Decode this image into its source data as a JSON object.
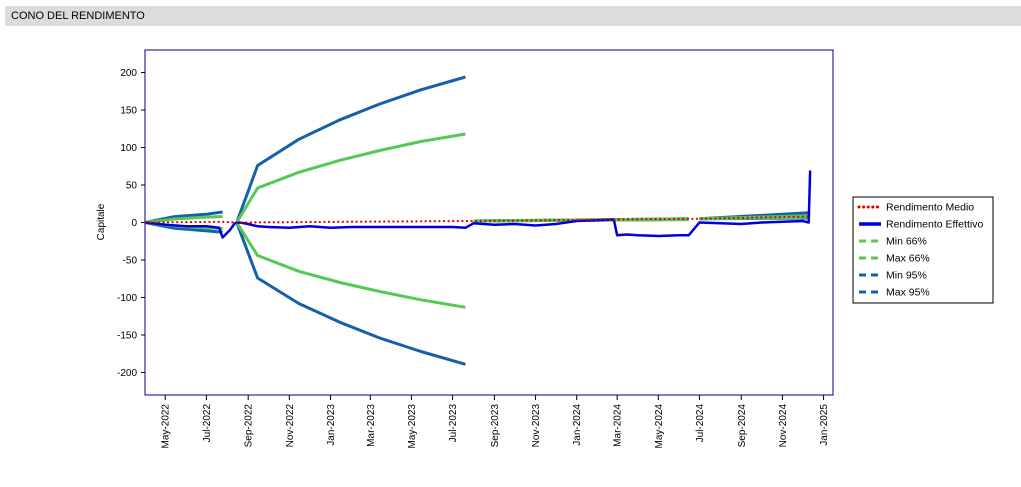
{
  "header": {
    "title": "CONO DEL RENDIMENTO"
  },
  "colors": {
    "axis_frame": "#000080",
    "rendimento_medio": "#e00000",
    "rendimento_effettivo": "#0000dd",
    "band66": "#55c855",
    "band95": "#1560a8"
  },
  "chart_data": {
    "type": "line",
    "title": "CONO DEL RENDIMENTO",
    "ylabel": "Capitale",
    "xlabel": "",
    "ylim": [
      -230,
      230
    ],
    "yticks": [
      200,
      150,
      100,
      50,
      0,
      -50,
      -100,
      -150,
      -200
    ],
    "xticks": [
      "May-2022",
      "Jul-2022",
      "Sep-2022",
      "Nov-2022",
      "Jan-2023",
      "Mar-2023",
      "May-2023",
      "Jul-2023",
      "Sep-2023",
      "Nov-2023",
      "Jan-2024",
      "Mar-2024",
      "May-2024",
      "Jul-2024",
      "Sep-2024",
      "Nov-2024",
      "Jan-2025"
    ],
    "x_range": [
      "2022-04-01",
      "2025-01-15"
    ],
    "grid": false,
    "legend_position": "right",
    "legend": [
      "Rendimento Medio",
      "Rendimento Effettivo",
      "Min 66%",
      "Max 66%",
      "Min 95%",
      "Max 95%"
    ],
    "series": [
      {
        "name": "Rendimento Medio",
        "style": "dotted",
        "points": [
          [
            "2022-04-01",
            0
          ],
          [
            "2022-07-25",
            1
          ],
          [
            "2022-08-15",
            0
          ],
          [
            "2023-07-20",
            2
          ],
          [
            "2023-08-01",
            2
          ],
          [
            "2024-06-15",
            5
          ],
          [
            "2024-07-01",
            5
          ],
          [
            "2024-12-10",
            8
          ]
        ]
      },
      {
        "name": "Rendimento Effettivo",
        "style": "solid",
        "points": [
          [
            "2022-04-01",
            0
          ],
          [
            "2022-05-01",
            -3
          ],
          [
            "2022-06-01",
            -5
          ],
          [
            "2022-07-01",
            -5
          ],
          [
            "2022-07-20",
            -7
          ],
          [
            "2022-07-25",
            -20
          ],
          [
            "2022-08-05",
            -10
          ],
          [
            "2022-08-12",
            -1
          ],
          [
            "2022-08-20",
            0
          ],
          [
            "2022-09-01",
            -2
          ],
          [
            "2022-09-15",
            -5
          ],
          [
            "2022-10-01",
            -6
          ],
          [
            "2022-11-01",
            -7
          ],
          [
            "2022-12-01",
            -5
          ],
          [
            "2023-01-01",
            -7
          ],
          [
            "2023-02-01",
            -6
          ],
          [
            "2023-03-01",
            -6
          ],
          [
            "2023-04-01",
            -6
          ],
          [
            "2023-05-01",
            -6
          ],
          [
            "2023-06-01",
            -6
          ],
          [
            "2023-07-01",
            -6
          ],
          [
            "2023-07-20",
            -7
          ],
          [
            "2023-08-01",
            -1
          ],
          [
            "2023-09-01",
            -3
          ],
          [
            "2023-10-01",
            -2
          ],
          [
            "2023-11-01",
            -4
          ],
          [
            "2023-12-01",
            -2
          ],
          [
            "2024-01-01",
            2
          ],
          [
            "2024-02-01",
            3
          ],
          [
            "2024-02-25",
            4
          ],
          [
            "2024-03-01",
            -17
          ],
          [
            "2024-03-15",
            -16
          ],
          [
            "2024-04-01",
            -17
          ],
          [
            "2024-05-01",
            -18
          ],
          [
            "2024-06-01",
            -17
          ],
          [
            "2024-06-15",
            -17
          ],
          [
            "2024-07-01",
            0
          ],
          [
            "2024-08-01",
            -1
          ],
          [
            "2024-09-01",
            -2
          ],
          [
            "2024-10-01",
            0
          ],
          [
            "2024-11-01",
            1
          ],
          [
            "2024-12-01",
            2
          ],
          [
            "2024-12-10",
            0
          ],
          [
            "2024-12-12",
            68
          ]
        ]
      },
      {
        "name": "Min 66%",
        "style": "dashed",
        "segments": [
          [
            [
              "2022-04-01",
              0
            ],
            [
              "2022-05-15",
              -4.7
            ],
            [
              "2022-06-30",
              -7.2
            ],
            [
              "2022-07-25",
              -8
            ]
          ],
          [
            [
              "2022-08-15",
              0
            ],
            [
              "2022-09-15",
              -44
            ],
            [
              "2022-11-15",
              -65
            ],
            [
              "2023-01-15",
              -80
            ],
            [
              "2023-03-15",
              -92
            ],
            [
              "2023-05-15",
              -103
            ],
            [
              "2023-07-20",
              -113
            ]
          ],
          [
            [
              "2023-08-01",
              2
            ],
            [
              "2024-06-15",
              4
            ]
          ],
          [
            [
              "2024-07-01",
              5
            ],
            [
              "2024-12-10",
              7
            ]
          ]
        ]
      },
      {
        "name": "Max 66%",
        "style": "dashed",
        "segments": [
          [
            [
              "2022-04-01",
              0
            ],
            [
              "2022-05-15",
              4.7
            ],
            [
              "2022-06-30",
              7.2
            ],
            [
              "2022-07-25",
              8
            ]
          ],
          [
            [
              "2022-08-15",
              0
            ],
            [
              "2022-09-15",
              46
            ],
            [
              "2022-11-15",
              67
            ],
            [
              "2023-01-15",
              83
            ],
            [
              "2023-03-15",
              96
            ],
            [
              "2023-05-15",
              108
            ],
            [
              "2023-07-20",
              118
            ]
          ],
          [
            [
              "2023-08-01",
              2
            ],
            [
              "2024-06-15",
              5
            ]
          ],
          [
            [
              "2024-07-01",
              5
            ],
            [
              "2024-12-10",
              9
            ]
          ]
        ]
      },
      {
        "name": "Min 95%",
        "style": "dashed",
        "segments": [
          [
            [
              "2022-04-01",
              0
            ],
            [
              "2022-05-15",
              -7.8
            ],
            [
              "2022-06-30",
              -11
            ],
            [
              "2022-07-25",
              -13
            ]
          ],
          [
            [
              "2022-08-15",
              0
            ],
            [
              "2022-09-15",
              -74
            ],
            [
              "2022-11-15",
              -108
            ],
            [
              "2023-01-15",
              -133
            ],
            [
              "2023-03-15",
              -154
            ],
            [
              "2023-05-15",
              -172
            ],
            [
              "2023-07-20",
              -189
            ]
          ],
          [
            [
              "2023-08-01",
              2
            ],
            [
              "2024-06-15",
              4
            ]
          ],
          [
            [
              "2024-07-01",
              5
            ],
            [
              "2024-12-10",
              6
            ]
          ]
        ]
      },
      {
        "name": "Max 95%",
        "style": "dashed",
        "segments": [
          [
            [
              "2022-04-01",
              0
            ],
            [
              "2022-05-15",
              7.8
            ],
            [
              "2022-06-30",
              11
            ],
            [
              "2022-07-25",
              14
            ]
          ],
          [
            [
              "2022-08-15",
              0
            ],
            [
              "2022-09-15",
              76
            ],
            [
              "2022-11-15",
              111
            ],
            [
              "2023-01-15",
              137
            ],
            [
              "2023-03-15",
              158
            ],
            [
              "2023-05-15",
              177
            ],
            [
              "2023-07-20",
              194
            ]
          ],
          [
            [
              "2023-08-01",
              2
            ],
            [
              "2024-06-15",
              5
            ]
          ],
          [
            [
              "2024-07-01",
              5
            ],
            [
              "2024-12-10",
              13
            ]
          ]
        ]
      }
    ]
  }
}
